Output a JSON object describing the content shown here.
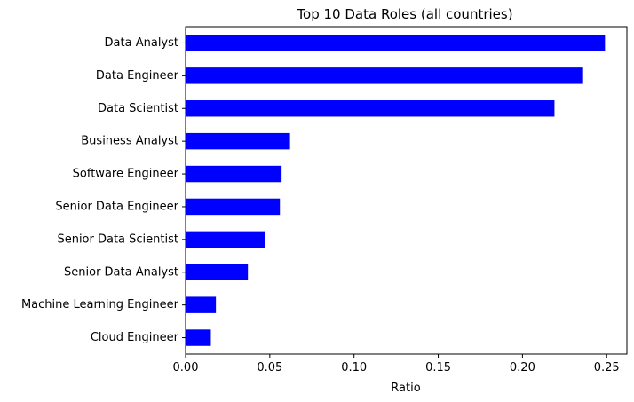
{
  "chart_data": {
    "type": "bar",
    "orientation": "horizontal",
    "title": "Top 10 Data Roles (all countries)",
    "xlabel": "Ratio",
    "ylabel": "",
    "xlim": [
      0,
      0.262
    ],
    "xticks": [
      "0.00",
      "0.05",
      "0.10",
      "0.15",
      "0.20",
      "0.25"
    ],
    "xtick_values": [
      0,
      0.05,
      0.1,
      0.15,
      0.2,
      0.25
    ],
    "categories": [
      "Data Analyst",
      "Data Engineer",
      "Data Scientist",
      "Business Analyst",
      "Software Engineer",
      "Senior Data Engineer",
      "Senior Data Scientist",
      "Senior Data Analyst",
      "Machine Learning Engineer",
      "Cloud Engineer"
    ],
    "values": [
      0.249,
      0.236,
      0.219,
      0.062,
      0.057,
      0.056,
      0.047,
      0.037,
      0.018,
      0.015
    ],
    "bar_color": "#0000ff",
    "grid": false,
    "legend": "none"
  }
}
